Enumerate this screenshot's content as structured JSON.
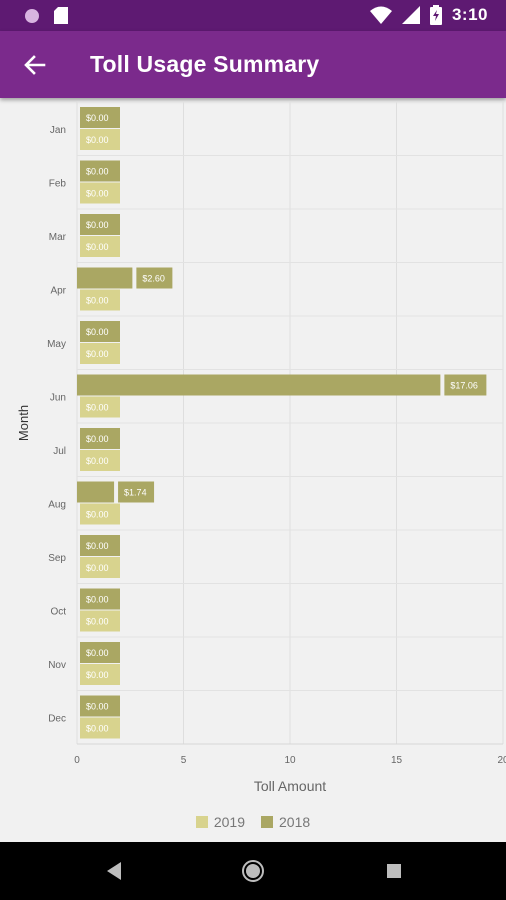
{
  "status_bar": {
    "time": "3:10",
    "icons": [
      "circle-icon",
      "sd-card-icon",
      "wifi-icon",
      "signal-icon",
      "battery-icon"
    ]
  },
  "app_bar": {
    "title": "Toll Usage Summary",
    "back_icon": "arrow-left-icon"
  },
  "colors": {
    "status_bar": "#5e1a72",
    "app_bar": "#7b2a8c",
    "series_2019": "#d8d38e",
    "series_2018": "#aaa763",
    "background": "#f1f1f1"
  },
  "chart_data": {
    "type": "bar",
    "orientation": "horizontal",
    "categories": [
      "Jan",
      "Feb",
      "Mar",
      "Apr",
      "May",
      "Jun",
      "Jul",
      "Aug",
      "Sep",
      "Oct",
      "Nov",
      "Dec"
    ],
    "series": [
      {
        "name": "2018",
        "color": "#aaa763",
        "values": [
          0,
          0,
          0,
          2.6,
          0,
          17.06,
          0,
          1.74,
          0,
          0,
          0,
          0
        ],
        "labels": [
          "$0.00",
          "$0.00",
          "$0.00",
          "$2.60",
          "$0.00",
          "$17.06",
          "$0.00",
          "$1.74",
          "$0.00",
          "$0.00",
          "$0.00",
          "$0.00"
        ]
      },
      {
        "name": "2019",
        "color": "#d8d38e",
        "values": [
          0,
          0,
          0,
          0,
          0,
          0,
          0,
          0,
          0,
          0,
          0,
          0
        ],
        "labels": [
          "$0.00",
          "$0.00",
          "$0.00",
          "$0.00",
          "$0.00",
          "$0.00",
          "$0.00",
          "$0.00",
          "$0.00",
          "$0.00",
          "$0.00",
          "$0.00"
        ]
      }
    ],
    "legend": [
      "2019",
      "2018"
    ],
    "xlabel": "Toll Amount",
    "ylabel": "Month",
    "xlim": [
      0,
      20
    ],
    "xticks": [
      0,
      5,
      10,
      15,
      20
    ],
    "grid": true,
    "legend_position": "bottom"
  },
  "nav_bar": {
    "buttons": [
      "back-triangle-icon",
      "home-circle-icon",
      "recents-square-icon"
    ]
  }
}
